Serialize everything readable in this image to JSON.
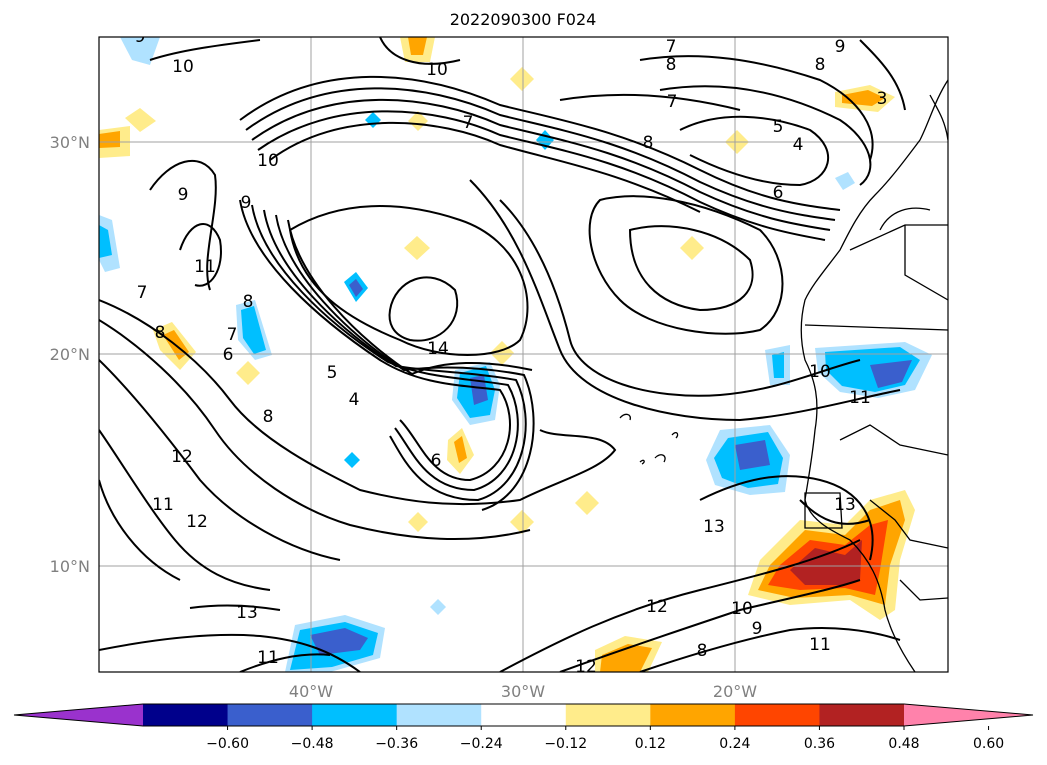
{
  "title": "2022090300 F024",
  "map": {
    "lon_range": [
      -50,
      -10
    ],
    "lat_range": [
      5,
      35
    ],
    "lat_ticks": [
      {
        "value": 30,
        "label": "30°N"
      },
      {
        "value": 20,
        "label": "20°N"
      },
      {
        "value": 10,
        "label": "10°N"
      }
    ],
    "lon_ticks": [
      {
        "value": -40,
        "label": "40°W"
      },
      {
        "value": -30,
        "label": "30°W"
      },
      {
        "value": -20,
        "label": "20°W"
      }
    ],
    "grid": true,
    "contour_labels": [
      "9",
      "10",
      "7",
      "8",
      "9",
      "8",
      "10",
      "7",
      "5",
      "4",
      "8",
      "6",
      "3",
      "7",
      "10",
      "9",
      "9",
      "11",
      "7",
      "8",
      "8",
      "7",
      "6",
      "14",
      "5",
      "4",
      "8",
      "12",
      "6",
      "11",
      "12",
      "10",
      "11",
      "13",
      "13",
      "12",
      "11",
      "13",
      "10",
      "9",
      "8",
      "11",
      "12"
    ]
  },
  "colorbar": {
    "ticks": [
      "−0.60",
      "−0.48",
      "−0.36",
      "−0.24",
      "−0.12",
      "0.12",
      "0.24",
      "0.36",
      "0.48",
      "0.60"
    ],
    "colors": [
      "#9a32cd",
      "#00008b",
      "#3a5fcd",
      "#00bfff",
      "#b0e2ff",
      "#ffffff",
      "#ffec8b",
      "#ffa500",
      "#ff4500",
      "#b22222",
      "#ff82ab"
    ],
    "extend": "both"
  }
}
